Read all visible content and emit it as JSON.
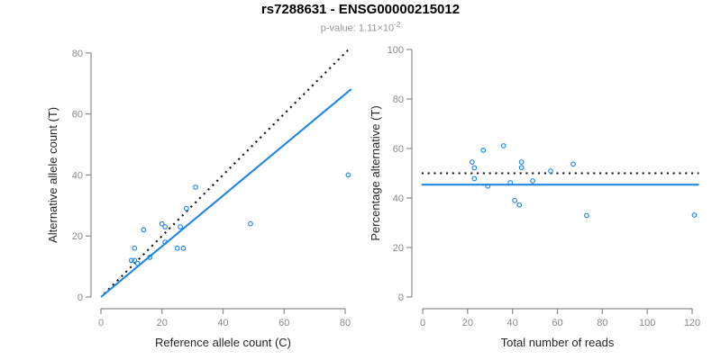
{
  "header": {
    "title": "rs7288631 - ENSG00000215012",
    "subtitle_base": "p-value: 1.11×10",
    "subtitle_exponent": "-2"
  },
  "colors": {
    "point_blue": "#1E87E5",
    "line_blue": "#1E87E5",
    "dotted_black": "#1A1A1A",
    "axis_gray": "#8C8C8C",
    "tick_label_gray": "#8A8A8A",
    "axis_title_color": "#262626"
  },
  "chart_data": [
    {
      "id": "allele-count-scatter",
      "type": "scatter",
      "xlabel": "Reference allele count (C)",
      "ylabel": "Alternative allele count (T)",
      "xlim": [
        0,
        80
      ],
      "ylim": [
        0,
        80
      ],
      "xticks": [
        0,
        20,
        40,
        60,
        80
      ],
      "yticks": [
        0,
        20,
        40,
        60,
        80
      ],
      "grid": false,
      "legend": false,
      "points": [
        [
          10,
          12
        ],
        [
          11,
          12
        ],
        [
          11,
          16
        ],
        [
          12,
          11
        ],
        [
          14,
          22
        ],
        [
          16,
          13
        ],
        [
          20,
          24
        ],
        [
          21,
          18
        ],
        [
          21,
          23
        ],
        [
          25,
          16
        ],
        [
          26,
          23
        ],
        [
          27,
          16
        ],
        [
          28,
          29
        ],
        [
          31,
          36
        ],
        [
          49,
          24
        ],
        [
          81,
          40
        ]
      ],
      "lines": [
        {
          "name": "identity-line",
          "style": "dotted",
          "color_key": "dotted_black",
          "slope": 1,
          "intercept": 0,
          "x_range": [
            1,
            81.5
          ]
        },
        {
          "name": "regression-line",
          "style": "solid",
          "color_key": "line_blue",
          "slope": 0.831,
          "intercept": 0,
          "x_range": [
            0,
            82
          ]
        }
      ]
    },
    {
      "id": "percentage-alternative-scatter",
      "type": "scatter",
      "xlabel": "Total number of reads",
      "ylabel": "Percentage alternative (T)",
      "xlim": [
        0,
        120
      ],
      "ylim": [
        0,
        100
      ],
      "xticks": [
        0,
        20,
        40,
        60,
        80,
        100,
        120
      ],
      "yticks": [
        0,
        20,
        40,
        60,
        80,
        100
      ],
      "grid": false,
      "legend": false,
      "points": [
        [
          22,
          54.5
        ],
        [
          23,
          47.8
        ],
        [
          23,
          52.2
        ],
        [
          27,
          59.3
        ],
        [
          29,
          44.8
        ],
        [
          36,
          61.1
        ],
        [
          39,
          46.2
        ],
        [
          41,
          39.0
        ],
        [
          43,
          37.2
        ],
        [
          44,
          52.3
        ],
        [
          44,
          54.5
        ],
        [
          49,
          46.9
        ],
        [
          57,
          50.9
        ],
        [
          67,
          53.7
        ],
        [
          73,
          32.9
        ],
        [
          121,
          33.1
        ]
      ],
      "lines": [
        {
          "name": "expected-50-percent-line",
          "style": "dotted",
          "color_key": "dotted_black",
          "slope": 0,
          "intercept": 50,
          "x_range": [
            -0.5,
            123
          ]
        },
        {
          "name": "mean-percentage-line",
          "style": "solid",
          "color_key": "line_blue",
          "slope": 0,
          "intercept": 45.4,
          "x_range": [
            -0.5,
            123
          ]
        }
      ]
    }
  ]
}
